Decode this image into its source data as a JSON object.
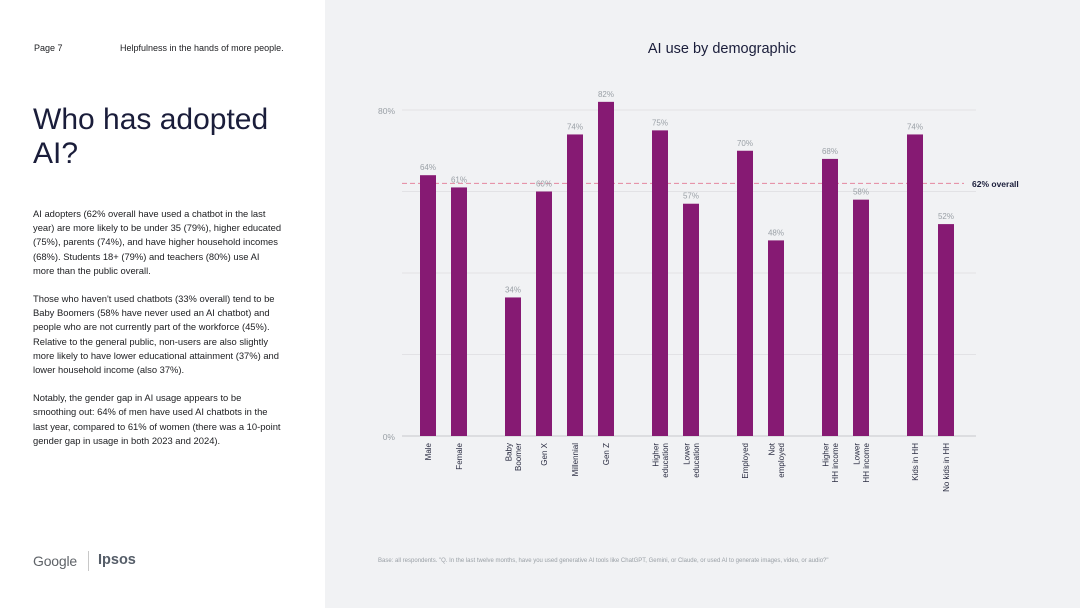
{
  "header": {
    "page": "Page 7",
    "section": "Helpfulness in the hands of more people."
  },
  "headline": "Who has adopted AI?",
  "body_paragraphs": [
    "AI adopters (62% overall have used a chatbot in the last year) are more likely to be under 35 (79%), higher educated (75%), parents (74%), and have higher household incomes (68%). Students 18+ (79%) and teachers (80%) use AI more than the public overall.",
    "Those who haven't used chatbots (33% overall) tend to be Baby Boomers (58% have never used an AI chatbot) and people who are not currently part of the workforce (45%). Relative to the general public, non-users are also slightly more likely to have lower educational attainment (37%) and lower household income (also 37%).",
    "Notably, the gender gap in AI usage appears to be smoothing out: 64% of men have used AI chatbots in the last year, compared to 61% of women (there was a 10-point gender gap in usage in both 2023 and 2024)."
  ],
  "logos": {
    "google": "Google",
    "ipsos": "Ipsos"
  },
  "footnote": "Base: all respondents. \"Q. In the last twelve months, have you used generative AI tools like ChatGPT, Gemini, or Claude, or used AI to generate images, video, or audio?\"",
  "colors": {
    "bar": "#861a73",
    "reference_line": "#e4879e",
    "gridline": "#dcdde1",
    "axis_text": "#9aa0a6",
    "label_text": "#2b2d42",
    "right_panel_bg": "#f1f2f4"
  },
  "chart_data": {
    "type": "bar",
    "title": "AI use by demographic",
    "xlabel": "",
    "ylabel": "",
    "ylim": [
      0,
      80
    ],
    "y_ticks": [
      {
        "value": 80,
        "label": "80%"
      },
      {
        "value": 0,
        "label": "0%"
      }
    ],
    "grid": true,
    "groups": [
      [
        "Male",
        "Female"
      ],
      [
        "Baby Boomer",
        "Gen X",
        "Millennial",
        "Gen Z"
      ],
      [
        "Higher education",
        "Lower education"
      ],
      [
        "Employed",
        "Not employed"
      ],
      [
        "Higher HH income",
        "Lower HH income"
      ],
      [
        "Kids in HH",
        "No kids in HH"
      ]
    ],
    "categories": [
      "Male",
      "Female",
      "Baby Boomer",
      "Gen X",
      "Millennial",
      "Gen Z",
      "Higher education",
      "Lower education",
      "Employed",
      "Not employed",
      "Higher HH income",
      "Lower HH income",
      "Kids in HH",
      "No kids in HH"
    ],
    "category_label_lines": [
      [
        "Male"
      ],
      [
        "Female"
      ],
      [
        "Baby",
        "Boomer"
      ],
      [
        "Gen X"
      ],
      [
        "Millennial"
      ],
      [
        "Gen Z"
      ],
      [
        "Higher",
        "education"
      ],
      [
        "Lower",
        "education"
      ],
      [
        "Employed"
      ],
      [
        "Not",
        "employed"
      ],
      [
        "Higher",
        "HH income"
      ],
      [
        "Lower",
        "HH income"
      ],
      [
        "Kids in HH"
      ],
      [
        "No kids in HH"
      ]
    ],
    "values": [
      64,
      61,
      34,
      60,
      74,
      82,
      75,
      57,
      70,
      48,
      68,
      58,
      74,
      52
    ],
    "data_labels": [
      "64%",
      "61%",
      "34%",
      "60%",
      "74%",
      "82%",
      "75%",
      "57%",
      "70%",
      "48%",
      "68%",
      "58%",
      "74%",
      "52%"
    ],
    "reference_line": {
      "value": 62,
      "label": "62% overall"
    }
  }
}
